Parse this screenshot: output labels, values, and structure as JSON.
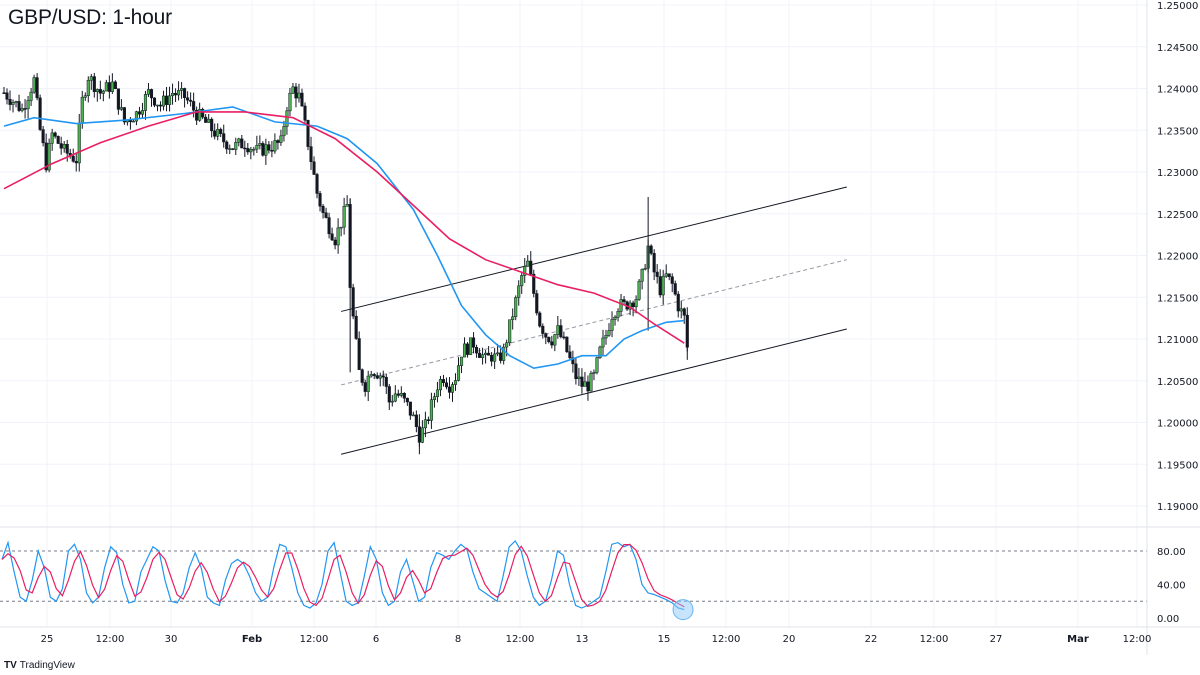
{
  "header": {
    "title": "GBP/USD: 1-hour"
  },
  "brand": {
    "logo_icon": "tradingview-logo-icon",
    "name": "TradingView"
  },
  "chart_data": [
    {
      "type": "line",
      "subtype": "candlestick",
      "title": "GBP/USD: 1-hour",
      "price_axis": {
        "ylim": [
          1.186,
          1.25
        ],
        "ticks": [
          "1.19000",
          "1.19500",
          "1.20000",
          "1.20500",
          "1.21000",
          "1.21500",
          "1.22000",
          "1.22500",
          "1.23000",
          "1.23500",
          "1.24000",
          "1.24500",
          "1.25000"
        ],
        "tick_values": [
          1.19,
          1.195,
          1.2,
          1.205,
          1.21,
          1.215,
          1.22,
          1.225,
          1.23,
          1.235,
          1.24,
          1.245,
          1.25
        ]
      },
      "time_axis": {
        "ticks": [
          "25",
          "12:00",
          "30",
          "Feb",
          "12:00",
          "6",
          "8",
          "12:00",
          "13",
          "15",
          "12:00",
          "20",
          "22",
          "12:00",
          "27",
          "Mar",
          "12:00"
        ],
        "bold_ticks": [
          "Feb",
          "Mar"
        ]
      },
      "grid": true,
      "close_path": [
        [
          0,
          1.2395
        ],
        [
          3,
          1.2375
        ],
        [
          5,
          1.241
        ],
        [
          6,
          1.235
        ],
        [
          7,
          1.231
        ],
        [
          8,
          1.2345
        ],
        [
          10,
          1.2325
        ],
        [
          12,
          1.2315
        ],
        [
          13,
          1.2385
        ],
        [
          14,
          1.2415
        ],
        [
          16,
          1.2395
        ],
        [
          18,
          1.2405
        ],
        [
          20,
          1.236
        ],
        [
          22,
          1.237
        ],
        [
          24,
          1.2395
        ],
        [
          26,
          1.238
        ],
        [
          28,
          1.2395
        ],
        [
          30,
          1.239
        ],
        [
          32,
          1.237
        ],
        [
          34,
          1.2355
        ],
        [
          36,
          1.234
        ],
        [
          38,
          1.233
        ],
        [
          40,
          1.2335
        ],
        [
          42,
          1.2325
        ],
        [
          44,
          1.233
        ],
        [
          46,
          1.2335
        ],
        [
          47,
          1.238
        ],
        [
          48,
          1.24
        ],
        [
          49,
          1.239
        ],
        [
          50,
          1.2355
        ],
        [
          51,
          1.2315
        ],
        [
          52,
          1.2275
        ],
        [
          53,
          1.225
        ],
        [
          55,
          1.222
        ],
        [
          57,
          1.226
        ],
        [
          57.5,
          1.2165
        ],
        [
          58,
          1.2125
        ],
        [
          59,
          1.206
        ],
        [
          60,
          1.2045
        ],
        [
          61,
          1.2065
        ],
        [
          63,
          1.2055
        ],
        [
          64,
          1.2025
        ],
        [
          65,
          1.2035
        ],
        [
          66,
          1.203
        ],
        [
          67,
          1.202
        ],
        [
          68,
          1.2005
        ],
        [
          69,
          1.1985
        ],
        [
          70,
          1.1995
        ],
        [
          71,
          1.202
        ],
        [
          72,
          1.2045
        ],
        [
          73,
          1.2055
        ],
        [
          74,
          1.2045
        ],
        [
          75,
          1.2055
        ],
        [
          76,
          1.2085
        ],
        [
          78,
          1.2095
        ],
        [
          80,
          1.2075
        ],
        [
          81,
          1.208
        ],
        [
          82,
          1.2075
        ],
        [
          83,
          1.2085
        ],
        [
          84,
          1.2115
        ],
        [
          85,
          1.2145
        ],
        [
          86,
          1.2175
        ],
        [
          87,
          1.219
        ],
        [
          88,
          1.2155
        ],
        [
          89,
          1.212
        ],
        [
          90,
          1.2105
        ],
        [
          91,
          1.21
        ],
        [
          92,
          1.211
        ],
        [
          93,
          1.2095
        ],
        [
          94,
          1.2075
        ],
        [
          95,
          1.2055
        ],
        [
          96,
          1.2045
        ],
        [
          97,
          1.2045
        ],
        [
          98,
          1.2055
        ],
        [
          99,
          1.2085
        ],
        [
          100,
          1.2105
        ],
        [
          101,
          1.213
        ],
        [
          102,
          1.214
        ],
        [
          103,
          1.214
        ],
        [
          104,
          1.2145
        ],
        [
          105,
          1.215
        ],
        [
          106,
          1.2175
        ],
        [
          107,
          1.221
        ],
        [
          108,
          1.218
        ],
        [
          109,
          1.216
        ],
        [
          110,
          1.2175
        ],
        [
          111,
          1.2165
        ],
        [
          112,
          1.214
        ],
        [
          113,
          1.2125
        ],
        [
          113.5,
          1.209
        ]
      ],
      "candles": [
        {
          "i": 57.5,
          "h": 1.2268,
          "l": 1.206
        },
        {
          "i": 107,
          "h": 1.227,
          "l": 1.211
        },
        {
          "i": 113.5,
          "h": 1.213,
          "l": 1.2075
        },
        {
          "i": 69,
          "h": 1.201,
          "l": 1.1962
        }
      ],
      "series": [
        {
          "name": "",
          "color": "#2196f3",
          "role": "moving-average-1",
          "values": [
            [
              0,
              1.2355
            ],
            [
              5,
              1.2365
            ],
            [
              12,
              1.2358
            ],
            [
              20,
              1.2362
            ],
            [
              30,
              1.237
            ],
            [
              38,
              1.2378
            ],
            [
              45,
              1.236
            ],
            [
              52,
              1.2355
            ],
            [
              57,
              1.234
            ],
            [
              62,
              1.231
            ],
            [
              68,
              1.2255
            ],
            [
              72,
              1.22
            ],
            [
              76,
              1.214
            ],
            [
              80,
              1.2105
            ],
            [
              84,
              1.208
            ],
            [
              88,
              1.2065
            ],
            [
              92,
              1.207
            ],
            [
              96,
              1.208
            ],
            [
              100,
              1.208
            ],
            [
              103,
              1.21
            ],
            [
              106,
              1.211
            ],
            [
              110,
              1.212
            ],
            [
              113,
              1.2122
            ]
          ]
        },
        {
          "name": "",
          "color": "#e91e63",
          "role": "moving-average-2",
          "values": [
            [
              0,
              1.228
            ],
            [
              8,
              1.231
            ],
            [
              16,
              1.2335
            ],
            [
              24,
              1.2355
            ],
            [
              32,
              1.2372
            ],
            [
              40,
              1.2372
            ],
            [
              48,
              1.2365
            ],
            [
              55,
              1.234
            ],
            [
              62,
              1.23
            ],
            [
              68,
              1.226
            ],
            [
              74,
              1.222
            ],
            [
              80,
              1.2195
            ],
            [
              86,
              1.218
            ],
            [
              92,
              1.2165
            ],
            [
              98,
              1.2155
            ],
            [
              104,
              1.2138
            ],
            [
              108,
              1.2118
            ],
            [
              113,
              1.2095
            ]
          ]
        }
      ],
      "trendlines": [
        {
          "name": "",
          "style": "solid",
          "color": "#131722",
          "from": [
            56,
            1.2133
          ],
          "to": [
            140,
            1.2282
          ]
        },
        {
          "name": "",
          "style": "dashed",
          "color": "#9598a1",
          "from": [
            56,
            1.2045
          ],
          "to": [
            140,
            1.2195
          ]
        },
        {
          "name": "",
          "style": "solid",
          "color": "#131722",
          "from": [
            56,
            1.1962
          ],
          "to": [
            140,
            1.2112
          ]
        }
      ]
    },
    {
      "type": "line",
      "subtype": "stochastic-oscillator",
      "ylim": [
        -5,
        100
      ],
      "ticks": [
        "80.00",
        "40.00",
        "0.00"
      ],
      "tick_values": [
        80,
        40,
        0
      ],
      "reference_lines": [
        80,
        20
      ],
      "series": [
        {
          "name": "",
          "color": "#2196f3",
          "role": "k-line"
        },
        {
          "name": "",
          "color": "#e91e63",
          "role": "d-line"
        }
      ],
      "highlight": {
        "shape": "circle",
        "at_index": 112.8,
        "at_value": 10,
        "color": "#90caf9"
      },
      "k_values": [
        70,
        90,
        55,
        25,
        20,
        45,
        80,
        60,
        25,
        20,
        35,
        80,
        88,
        70,
        30,
        18,
        25,
        60,
        85,
        78,
        40,
        18,
        20,
        55,
        70,
        85,
        80,
        45,
        20,
        18,
        30,
        60,
        78,
        60,
        25,
        18,
        15,
        45,
        65,
        70,
        65,
        50,
        30,
        20,
        25,
        60,
        88,
        85,
        60,
        30,
        15,
        12,
        18,
        40,
        80,
        90,
        55,
        20,
        15,
        18,
        50,
        85,
        70,
        30,
        15,
        20,
        55,
        70,
        45,
        20,
        25,
        60,
        78,
        75,
        70,
        80,
        88,
        82,
        55,
        35,
        30,
        25,
        20,
        50,
        85,
        92,
        80,
        50,
        25,
        15,
        20,
        45,
        80,
        75,
        40,
        15,
        12,
        15,
        20,
        25,
        55,
        88,
        90,
        85,
        88,
        70,
        40,
        30,
        28,
        25,
        22,
        18,
        12,
        10
      ]
    }
  ]
}
